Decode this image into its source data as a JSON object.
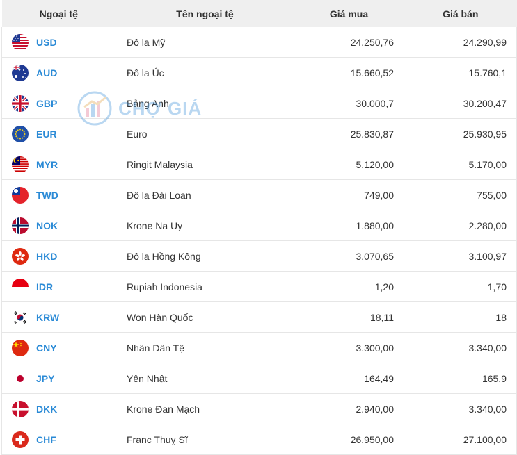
{
  "headers": {
    "code": "Ngoại tệ",
    "name": "Tên ngoại tệ",
    "buy": "Giá mua",
    "sell": "Giá bán"
  },
  "watermark": "CHỢ GIÁ",
  "rows": [
    {
      "code": "USD",
      "name": "Đô la Mỹ",
      "buy": "24.250,76",
      "sell": "24.290,99",
      "flag": "us-flag"
    },
    {
      "code": "AUD",
      "name": "Đô la Úc",
      "buy": "15.660,52",
      "sell": "15.760,1",
      "flag": "au-flag"
    },
    {
      "code": "GBP",
      "name": "Bảng Anh",
      "buy": "30.000,7",
      "sell": "30.200,47",
      "flag": "gb-flag"
    },
    {
      "code": "EUR",
      "name": "Euro",
      "buy": "25.830,87",
      "sell": "25.930,95",
      "flag": "eu-flag"
    },
    {
      "code": "MYR",
      "name": "Ringit Malaysia",
      "buy": "5.120,00",
      "sell": "5.170,00",
      "flag": "my-flag"
    },
    {
      "code": "TWD",
      "name": "Đô la Đài Loan",
      "buy": "749,00",
      "sell": "755,00",
      "flag": "tw-flag"
    },
    {
      "code": "NOK",
      "name": "Krone Na Uy",
      "buy": "1.880,00",
      "sell": "2.280,00",
      "flag": "no-flag"
    },
    {
      "code": "HKD",
      "name": "Đô la Hồng Kông",
      "buy": "3.070,65",
      "sell": "3.100,97",
      "flag": "hk-flag"
    },
    {
      "code": "IDR",
      "name": "Rupiah Indonesia",
      "buy": "1,20",
      "sell": "1,70",
      "flag": "id-flag"
    },
    {
      "code": "KRW",
      "name": "Won Hàn Quốc",
      "buy": "18,11",
      "sell": "18",
      "flag": "kr-flag"
    },
    {
      "code": "CNY",
      "name": "Nhân Dân Tệ",
      "buy": "3.300,00",
      "sell": "3.340,00",
      "flag": "cn-flag"
    },
    {
      "code": "JPY",
      "name": "Yên Nhật",
      "buy": "164,49",
      "sell": "165,9",
      "flag": "jp-flag"
    },
    {
      "code": "DKK",
      "name": "Krone Đan Mạch",
      "buy": "2.940,00",
      "sell": "3.340,00",
      "flag": "dk-flag"
    },
    {
      "code": "CHF",
      "name": "Franc Thuỵ Sĩ",
      "buy": "26.950,00",
      "sell": "27.100,00",
      "flag": "ch-flag"
    }
  ]
}
